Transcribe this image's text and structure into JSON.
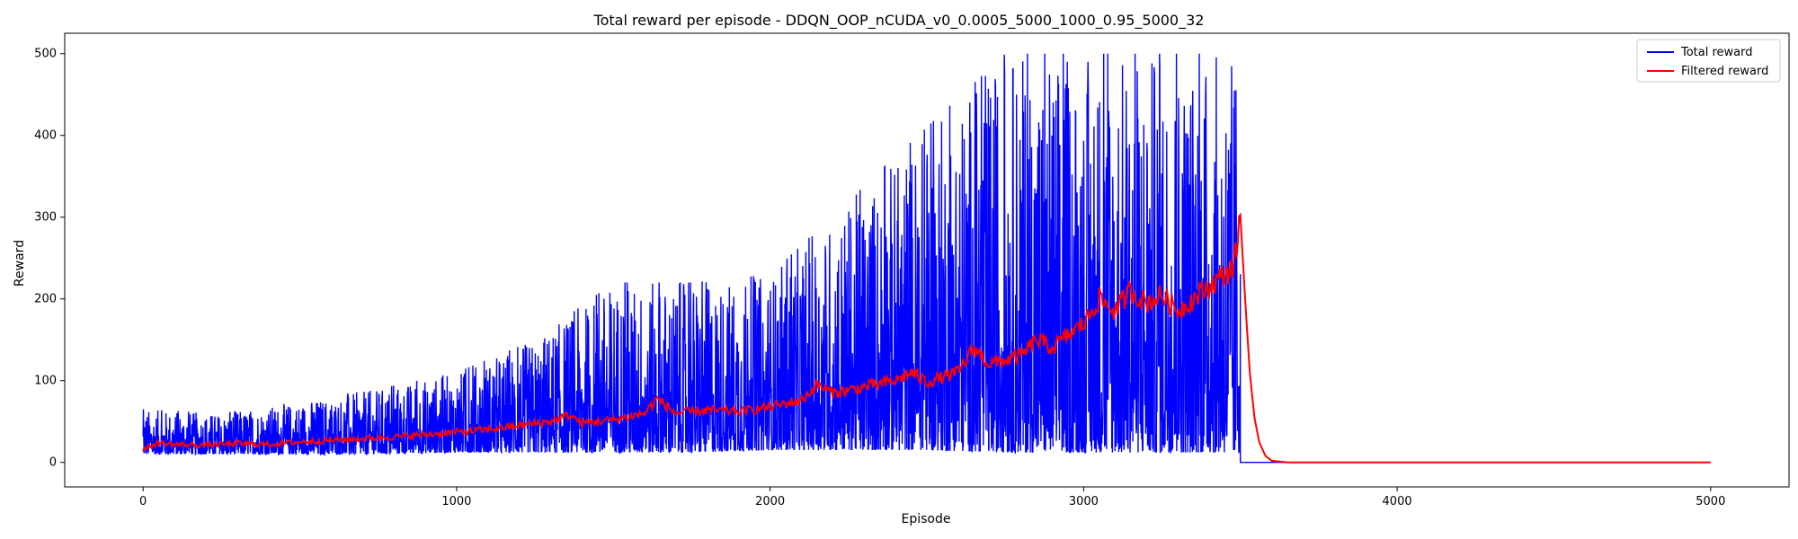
{
  "chart_data": {
    "type": "line",
    "title": "Total reward per episode - DDQN_OOP_nCUDA_v0_0.0005_5000_1000_0.95_5000_32",
    "xlabel": "Episode",
    "ylabel": "Reward",
    "xlim": [
      -250,
      5250
    ],
    "ylim": [
      -30,
      525
    ],
    "xticks": [
      0,
      1000,
      2000,
      3000,
      4000,
      5000
    ],
    "yticks": [
      0,
      100,
      200,
      300,
      400,
      500
    ],
    "legend_position": "top-right",
    "series": [
      {
        "name": "Total reward",
        "color": "#0000ff",
        "description": "noisy per-episode reward",
        "envelope": {
          "x": [
            0,
            250,
            500,
            750,
            1000,
            1250,
            1500,
            1750,
            2000,
            2250,
            2500,
            2750,
            3000,
            3250,
            3450,
            3500
          ],
          "min": [
            10,
            10,
            10,
            10,
            12,
            12,
            12,
            12,
            15,
            15,
            15,
            12,
            12,
            12,
            12,
            10
          ],
          "max": [
            65,
            60,
            75,
            90,
            110,
            150,
            220,
            220,
            230,
            320,
            410,
            500,
            500,
            500,
            500,
            500
          ]
        },
        "tail": {
          "x": [
            3500,
            5000
          ],
          "value": 0
        }
      },
      {
        "name": "Filtered reward",
        "color": "#ff0000",
        "description": "exponentially filtered reward",
        "points": [
          [
            0,
            16
          ],
          [
            50,
            24
          ],
          [
            100,
            22
          ],
          [
            200,
            21
          ],
          [
            300,
            23
          ],
          [
            400,
            22
          ],
          [
            500,
            25
          ],
          [
            600,
            27
          ],
          [
            700,
            29
          ],
          [
            800,
            31
          ],
          [
            900,
            34
          ],
          [
            1000,
            37
          ],
          [
            1100,
            40
          ],
          [
            1200,
            45
          ],
          [
            1300,
            50
          ],
          [
            1360,
            58
          ],
          [
            1400,
            48
          ],
          [
            1500,
            52
          ],
          [
            1600,
            60
          ],
          [
            1640,
            78
          ],
          [
            1700,
            60
          ],
          [
            1800,
            64
          ],
          [
            1900,
            62
          ],
          [
            2000,
            68
          ],
          [
            2100,
            76
          ],
          [
            2150,
            95
          ],
          [
            2200,
            85
          ],
          [
            2300,
            92
          ],
          [
            2400,
            100
          ],
          [
            2450,
            110
          ],
          [
            2500,
            98
          ],
          [
            2600,
            110
          ],
          [
            2650,
            140
          ],
          [
            2700,
            120
          ],
          [
            2800,
            130
          ],
          [
            2850,
            150
          ],
          [
            2900,
            140
          ],
          [
            3000,
            170
          ],
          [
            3050,
            200
          ],
          [
            3100,
            185
          ],
          [
            3150,
            210
          ],
          [
            3200,
            195
          ],
          [
            3250,
            205
          ],
          [
            3300,
            185
          ],
          [
            3350,
            200
          ],
          [
            3400,
            215
          ],
          [
            3450,
            230
          ],
          [
            3480,
            240
          ],
          [
            3500,
            303
          ],
          [
            3515,
            200
          ],
          [
            3530,
            110
          ],
          [
            3545,
            55
          ],
          [
            3560,
            25
          ],
          [
            3580,
            8
          ],
          [
            3600,
            2
          ],
          [
            3650,
            0
          ],
          [
            5000,
            0
          ]
        ]
      }
    ]
  }
}
